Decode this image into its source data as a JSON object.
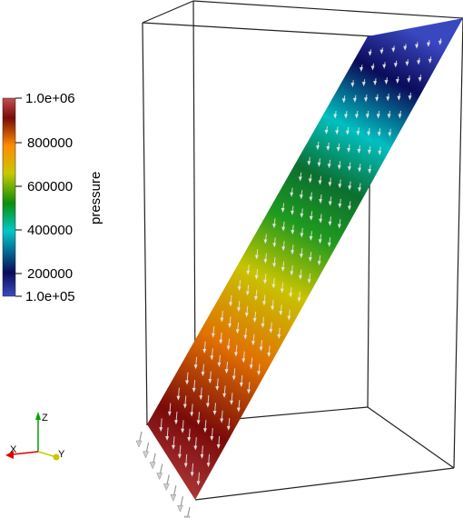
{
  "scene": {
    "colorbar": {
      "title": "pressure",
      "tick_labels": [
        "1.0e+06",
        "800000",
        "600000",
        "400000",
        "200000",
        "1.0e+05"
      ],
      "range": [
        100000,
        1000000
      ],
      "colormap": [
        "#3b4cc0",
        "#0b0b5a",
        "#00c8c8",
        "#0b8f0b",
        "#c8c800",
        "#ff8c00",
        "#7a0a0a",
        "#c0504d"
      ]
    },
    "axes_widget": {
      "x": "X",
      "y": "Y",
      "z": "Z",
      "x_color": "#e00000",
      "y_color": "#c8c800",
      "z_color": "#00a000"
    },
    "glyph_color": "#e8e8e8"
  }
}
